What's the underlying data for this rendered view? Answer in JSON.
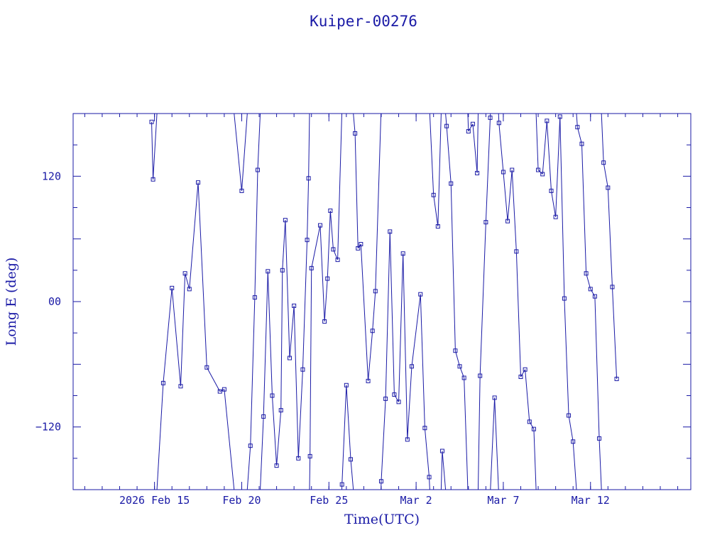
{
  "chart_data": {
    "type": "line",
    "title": "Kuiper-00276",
    "xlabel": "Time(UTC)",
    "ylabel": "Long E (deg)",
    "x_type": "date",
    "xlim": [
      "2026-02-10T08:00",
      "2026-03-17T18:00"
    ],
    "ylim": [
      -180,
      180
    ],
    "x_ticks": [
      {
        "date": "2026-02-15",
        "label": "2026 Feb 15"
      },
      {
        "date": "2026-02-20",
        "label": "Feb 20"
      },
      {
        "date": "2026-02-25",
        "label": "Feb 25"
      },
      {
        "date": "2026-03-02",
        "label": "Mar  2"
      },
      {
        "date": "2026-03-07",
        "label": "Mar  7"
      },
      {
        "date": "2026-03-12",
        "label": "Mar 12"
      }
    ],
    "y_ticks": [
      {
        "value": 120,
        "label": "120"
      },
      {
        "value": 0,
        "label": "00"
      },
      {
        "value": -120,
        "label": "−120"
      }
    ],
    "grid": false,
    "legend": "none",
    "colors": {
      "line": "#1a1aa6",
      "marker": "#1a1aa6",
      "text": "#1a1aa6",
      "background": "#ffffff"
    },
    "series": [
      {
        "marker": "square",
        "wrap_longitude": true,
        "points": [
          [
            "2026-02-14T20:00",
            172
          ],
          [
            "2026-02-14T22:00",
            117
          ],
          [
            "2026-02-15T12:00",
            -78
          ],
          [
            "2026-02-16T00:00",
            13
          ],
          [
            "2026-02-16T12:00",
            -81
          ],
          [
            "2026-02-16T18:00",
            27
          ],
          [
            "2026-02-17T00:00",
            12
          ],
          [
            "2026-02-17T12:00",
            114
          ],
          [
            "2026-02-18T00:00",
            -63
          ],
          [
            "2026-02-18T18:00",
            -86
          ],
          [
            "2026-02-19T00:00",
            -84
          ],
          [
            "2026-02-20T00:00",
            106
          ],
          [
            "2026-02-20T12:00",
            -138
          ],
          [
            "2026-02-20T18:00",
            4
          ],
          [
            "2026-02-20T22:00",
            126
          ],
          [
            "2026-02-21T06:00",
            -110
          ],
          [
            "2026-02-21T12:00",
            29
          ],
          [
            "2026-02-21T18:00",
            -90
          ],
          [
            "2026-02-22T00:00",
            -157
          ],
          [
            "2026-02-22T06:00",
            -104
          ],
          [
            "2026-02-22T08:00",
            30
          ],
          [
            "2026-02-22T12:00",
            78
          ],
          [
            "2026-02-22T18:00",
            -54
          ],
          [
            "2026-02-23T00:00",
            -4
          ],
          [
            "2026-02-23T06:00",
            -150
          ],
          [
            "2026-02-23T12:00",
            -65
          ],
          [
            "2026-02-23T18:00",
            59
          ],
          [
            "2026-02-23T20:00",
            118
          ],
          [
            "2026-02-23T22:00",
            -148
          ],
          [
            "2026-02-24T00:00",
            32
          ],
          [
            "2026-02-24T12:00",
            73
          ],
          [
            "2026-02-24T18:00",
            -19
          ],
          [
            "2026-02-24T22:00",
            22
          ],
          [
            "2026-02-25T02:00",
            87
          ],
          [
            "2026-02-25T06:00",
            50
          ],
          [
            "2026-02-25T12:00",
            40
          ],
          [
            "2026-02-25T18:00",
            -175
          ],
          [
            "2026-02-26T00:00",
            -80
          ],
          [
            "2026-02-26T06:00",
            -151
          ],
          [
            "2026-02-26T12:00",
            161
          ],
          [
            "2026-02-26T16:00",
            51
          ],
          [
            "2026-02-26T20:00",
            55
          ],
          [
            "2026-02-27T06:00",
            -76
          ],
          [
            "2026-02-27T12:00",
            -28
          ],
          [
            "2026-02-27T16:00",
            10
          ],
          [
            "2026-02-28T00:00",
            -172
          ],
          [
            "2026-02-28T06:00",
            -93
          ],
          [
            "2026-02-28T12:00",
            67
          ],
          [
            "2026-02-28T18:00",
            -89
          ],
          [
            "2026-03-01T00:00",
            -96
          ],
          [
            "2026-03-01T06:00",
            46
          ],
          [
            "2026-03-01T12:00",
            -132
          ],
          [
            "2026-03-01T18:00",
            -62
          ],
          [
            "2026-03-02T06:00",
            7
          ],
          [
            "2026-03-02T12:00",
            -121
          ],
          [
            "2026-03-02T18:00",
            -168
          ],
          [
            "2026-03-03T00:00",
            102
          ],
          [
            "2026-03-03T06:00",
            72
          ],
          [
            "2026-03-03T12:00",
            -143
          ],
          [
            "2026-03-03T18:00",
            168
          ],
          [
            "2026-03-04T00:00",
            113
          ],
          [
            "2026-03-04T06:00",
            -47
          ],
          [
            "2026-03-04T12:00",
            -62
          ],
          [
            "2026-03-04T18:00",
            -73
          ],
          [
            "2026-03-05T00:00",
            163
          ],
          [
            "2026-03-05T06:00",
            170
          ],
          [
            "2026-03-05T12:00",
            123
          ],
          [
            "2026-03-05T16:00",
            -71
          ],
          [
            "2026-03-06T00:00",
            76
          ],
          [
            "2026-03-06T06:00",
            176
          ],
          [
            "2026-03-06T12:00",
            -92
          ],
          [
            "2026-03-06T18:00",
            171
          ],
          [
            "2026-03-07T00:00",
            124
          ],
          [
            "2026-03-07T06:00",
            77
          ],
          [
            "2026-03-07T12:00",
            126
          ],
          [
            "2026-03-07T18:00",
            48
          ],
          [
            "2026-03-08T00:00",
            -72
          ],
          [
            "2026-03-08T06:00",
            -65
          ],
          [
            "2026-03-08T12:00",
            -115
          ],
          [
            "2026-03-08T18:00",
            -122
          ],
          [
            "2026-03-09T00:00",
            126
          ],
          [
            "2026-03-09T06:00",
            122
          ],
          [
            "2026-03-09T12:00",
            173
          ],
          [
            "2026-03-09T18:00",
            106
          ],
          [
            "2026-03-10T00:00",
            81
          ],
          [
            "2026-03-10T06:00",
            177
          ],
          [
            "2026-03-10T12:00",
            3
          ],
          [
            "2026-03-10T18:00",
            -109
          ],
          [
            "2026-03-11T00:00",
            -134
          ],
          [
            "2026-03-11T06:00",
            167
          ],
          [
            "2026-03-11T12:00",
            151
          ],
          [
            "2026-03-11T18:00",
            27
          ],
          [
            "2026-03-12T00:00",
            12
          ],
          [
            "2026-03-12T06:00",
            5
          ],
          [
            "2026-03-12T12:00",
            -131
          ],
          [
            "2026-03-12T18:00",
            133
          ],
          [
            "2026-03-13T00:00",
            109
          ],
          [
            "2026-03-13T06:00",
            14
          ],
          [
            "2026-03-13T12:00",
            -74
          ]
        ]
      }
    ]
  }
}
